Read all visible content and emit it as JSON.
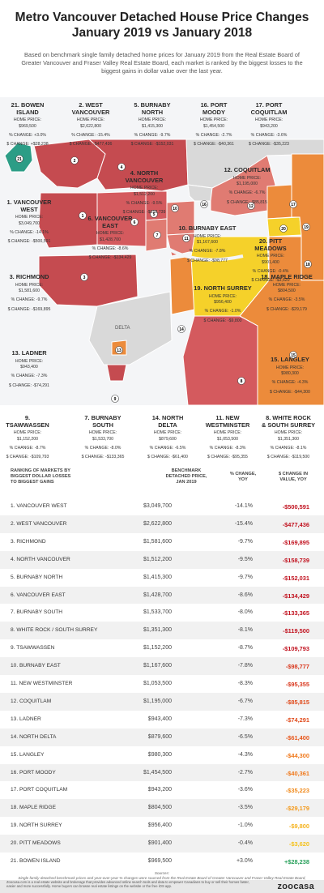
{
  "title_line1": "Metro Vancouver Detached House Price Changes",
  "title_line2": "January 2019 vs January 2018",
  "intro": "Based on benchmark single family detached home prices for January 2019 from the Real Estate Board of Greater Vancouver and Fraser Valley Real Estate Board, each market is ranked by the biggest losses to the biggest gains in dollar value over the last year.",
  "delta_label": "DELTA",
  "map_callouts": [
    {
      "rank": "21",
      "name": "21. BOWEN\nISLAND",
      "price": "HOME PRICE:\n$969,500",
      "change": "% CHANGE: +3.0%",
      "dollar": "$ CHANGE: +$28,238"
    },
    {
      "rank": "2",
      "name": "2. WEST\nVANCOUVER",
      "price": "HOME PRICE:\n$2,622,800",
      "change": "% CHANGE: -15.4%",
      "dollar": "$ CHANGE: -$477,436"
    },
    {
      "rank": "5",
      "name": "5. BURNABY\nNORTH",
      "price": "HOME PRICE:\n$1,415,300",
      "change": "% CHANGE: -9.7%",
      "dollar": "$ CHANGE: -$152,031"
    },
    {
      "rank": "16",
      "name": "16. PORT\nMOODY",
      "price": "HOME PRICE:\n$1,454,500",
      "change": "% CHANGE: -2.7%",
      "dollar": "$ CHANGE: -$40,361"
    },
    {
      "rank": "17",
      "name": "17. PORT\nCOQUITLAM",
      "price": "HOME PRICE:\n$943,200",
      "change": "% CHANGE: -3.6%",
      "dollar": "$ CHANGE: -$35,223"
    },
    {
      "rank": "4",
      "name": "4. NORTH\nVANCOUVER",
      "price": "HOME PRICE:\n$1,512,200",
      "change": "% CHANGE: -9.5%",
      "dollar": "$ CHANGE: -$158,739"
    },
    {
      "rank": "12",
      "name": "12. COQUITLAM",
      "price": "HOME PRICE:\n$1,195,000",
      "change": "% CHANGE: -6.7%",
      "dollar": "$ CHANGE: -$85,815"
    },
    {
      "rank": "1",
      "name": "1. VANCOUVER\nWEST",
      "price": "HOME PRICE:\n$3,049,700",
      "change": "% CHANGE: -14.1%",
      "dollar": "$ CHANGE: -$500,591"
    },
    {
      "rank": "6",
      "name": "6. VANCOUVER\nEAST",
      "price": "HOME PRICE:\n$1,428,700",
      "change": "% CHANGE: -8.6%",
      "dollar": "$ CHANGE: -$134,429"
    },
    {
      "rank": "10",
      "name": "10. BURNABY EAST",
      "price": "HOME PRICE:\n$1,167,600",
      "change": "% CHANGE: -7.8%",
      "dollar": "$ CHANGE: -$98,777"
    },
    {
      "rank": "20",
      "name": "20. PITT\nMEADOWS",
      "price": "HOME PRICE:\n$901,400",
      "change": "% CHANGE: -0.4%",
      "dollar": "$ CHANGE: -$3,620"
    },
    {
      "rank": "3",
      "name": "3. RICHMOND",
      "price": "HOME PRICE:\n$1,581,600",
      "change": "% CHANGE: -9.7%",
      "dollar": "$ CHANGE: -$169,895"
    },
    {
      "rank": "19",
      "name": "19. NORTH SURREY",
      "price": "HOME PRICE:\n$956,400",
      "change": "% CHANGE: -1.0%",
      "dollar": "$ CHANGE: -$9,800"
    },
    {
      "rank": "18",
      "name": "18. MAPLE RIDGE",
      "price": "HOME PRICE:\n$804,500",
      "change": "% CHANGE: -3.5%",
      "dollar": "$ CHANGE: -$29,179"
    },
    {
      "rank": "13",
      "name": "13. LADNER",
      "price": "HOME PRICE:\n$943,400",
      "change": "% CHANGE: -7.3%",
      "dollar": "$ CHANGE: -$74,291"
    },
    {
      "rank": "15",
      "name": "15. LANGLEY",
      "price": "HOME PRICE:\n$980,300",
      "change": "% CHANGE: -4.3%",
      "dollar": "$ CHANGE: -$44,300"
    },
    {
      "rank": "9",
      "name": "9.\nTSAWWASSEN",
      "price": "HOME PRICE:\n$1,152,200",
      "change": "% CHANGE: -8.7%",
      "dollar": "$ CHANGE: -$109,793"
    },
    {
      "rank": "7",
      "name": "7. BURNABY\nSOUTH",
      "price": "HOME PRICE:\n$1,533,700",
      "change": "% CHANGE: -8.0%",
      "dollar": "$ CHANGE: -$133,365"
    },
    {
      "rank": "14",
      "name": "14. NORTH\nDELTA",
      "price": "HOME PRICE:\n$879,600",
      "change": "% CHANGE: -6.5%",
      "dollar": "$ CHANGE: -$61,400"
    },
    {
      "rank": "11",
      "name": "11. NEW\nWESTMINSTER",
      "price": "HOME PRICE:\n$1,053,500",
      "change": "% CHANGE: -8.3%",
      "dollar": "$ CHANGE: -$95,355"
    },
    {
      "rank": "8",
      "name": "8. WHITE ROCK\n& SOUTH SURREY",
      "price": "HOME PRICE:\n$1,351,300",
      "change": "% CHANGE: -8.1%",
      "dollar": "$ CHANGE: -$119,500"
    }
  ],
  "table_headers": {
    "rank": "RANKING OF MARKETS BY\nBIGGEST DOLLAR LOSSES\nTO BIGGEST GAINS",
    "price": "BENCHMARK\nDETACHED PRICE,\nJAN 2019",
    "pct": "% CHANGE,\nYOY",
    "dollar": "$ CHANGE IN\nVALUE, YOY"
  },
  "chart_data": {
    "type": "table",
    "columns": [
      "RANKING OF MARKETS BY BIGGEST DOLLAR LOSSES TO BIGGEST GAINS",
      "BENCHMARK DETACHED PRICE, JAN 2019",
      "% CHANGE, YOY",
      "$ CHANGE IN VALUE, YOY"
    ],
    "rows": [
      [
        "1. VANCOUVER WEST",
        "$3,049,700",
        "-14.1%",
        "-$500,591"
      ],
      [
        "2. WEST VANCOUVER",
        "$2,622,800",
        "-15.4%",
        "-$477,436"
      ],
      [
        "3. RICHMOND",
        "$1,581,600",
        "-9.7%",
        "-$169,895"
      ],
      [
        "4. NORTH VANCOUVER",
        "$1,512,200",
        "-9.5%",
        "-$158,739"
      ],
      [
        "5. BURNABY NORTH",
        "$1,415,300",
        "-9.7%",
        "-$152,031"
      ],
      [
        "6. VANCOUVER EAST",
        "$1,428,700",
        "-8.6%",
        "-$134,429"
      ],
      [
        "7. BURNABY SOUTH",
        "$1,533,700",
        "-8.0%",
        "-$133,365"
      ],
      [
        "8. WHITE ROCK / SOUTH SURREY",
        "$1,351,300",
        "-8.1%",
        "-$119,500"
      ],
      [
        "9. TSAWWASSEN",
        "$1,152,200",
        "-8.7%",
        "-$109,793"
      ],
      [
        "10. BURNABY EAST",
        "$1,167,600",
        "-7.8%",
        "-$98,777"
      ],
      [
        "11. NEW WESTMINSTER",
        "$1,053,500",
        "-8.3%",
        "-$95,355"
      ],
      [
        "12. COQUITLAM",
        "$1,195,000",
        "-6.7%",
        "-$85,815"
      ],
      [
        "13. LADNER",
        "$943,400",
        "-7.3%",
        "-$74,291"
      ],
      [
        "14. NORTH DELTA",
        "$879,600",
        "-6.5%",
        "-$61,400"
      ],
      [
        "15. LANGLEY",
        "$980,300",
        "-4.3%",
        "-$44,300"
      ],
      [
        "16. PORT MOODY",
        "$1,454,500",
        "-2.7%",
        "-$40,361"
      ],
      [
        "17. PORT COQUITLAM",
        "$943,200",
        "-3.6%",
        "-$35,223"
      ],
      [
        "18. MAPLE RIDGE",
        "$804,500",
        "-3.5%",
        "-$29,179"
      ],
      [
        "19. NORTH SURREY",
        "$956,400",
        "-1.0%",
        "-$9,800"
      ],
      [
        "20. PITT MEADOWS",
        "$901,400",
        "-0.4%",
        "-$3,620"
      ],
      [
        "21. BOWEN ISLAND",
        "$969,500",
        "+3.0%",
        "+$28,238"
      ]
    ],
    "change_colors": [
      "#c1121f",
      "#c1121f",
      "#c1121f",
      "#c1121f",
      "#c1121f",
      "#c1121f",
      "#c1121f",
      "#c1121f",
      "#c1121f",
      "#d9381e",
      "#d9381e",
      "#e04a1b",
      "#e04a1b",
      "#e8561a",
      "#f0781a",
      "#f0781a",
      "#f08a1c",
      "#f49a1c",
      "#f5b21c",
      "#f5c21c",
      "#27a05a"
    ]
  },
  "sources": "Sources:\nSingle family detached benchmark prices and year-over-year % changes were sourced from the Real Estate Board of Greater Vancouver and Fraser Valley Real Estate Board, January 2019. Changes in dollar value were calculated by Zoocasa.",
  "footer": "Zoocasa.com is a real estate website and brokerage that provides advanced online search tools and data to empower Canadians to buy or sell their homes faster, easier and more successfully. Home buyers can browse real estate listings on the website or the free iOS app.",
  "logo": "zoocasa",
  "colors": {
    "water": "#f4f5f7",
    "land_gray": "#d9d9d9",
    "deep_red": "#c54b50",
    "red": "#d45a5e",
    "coral": "#e07b72",
    "orange": "#ec8b3b",
    "amber": "#f2a531",
    "yellow": "#f5d12a",
    "teal": "#2c9d86",
    "border": "#ffffff"
  }
}
